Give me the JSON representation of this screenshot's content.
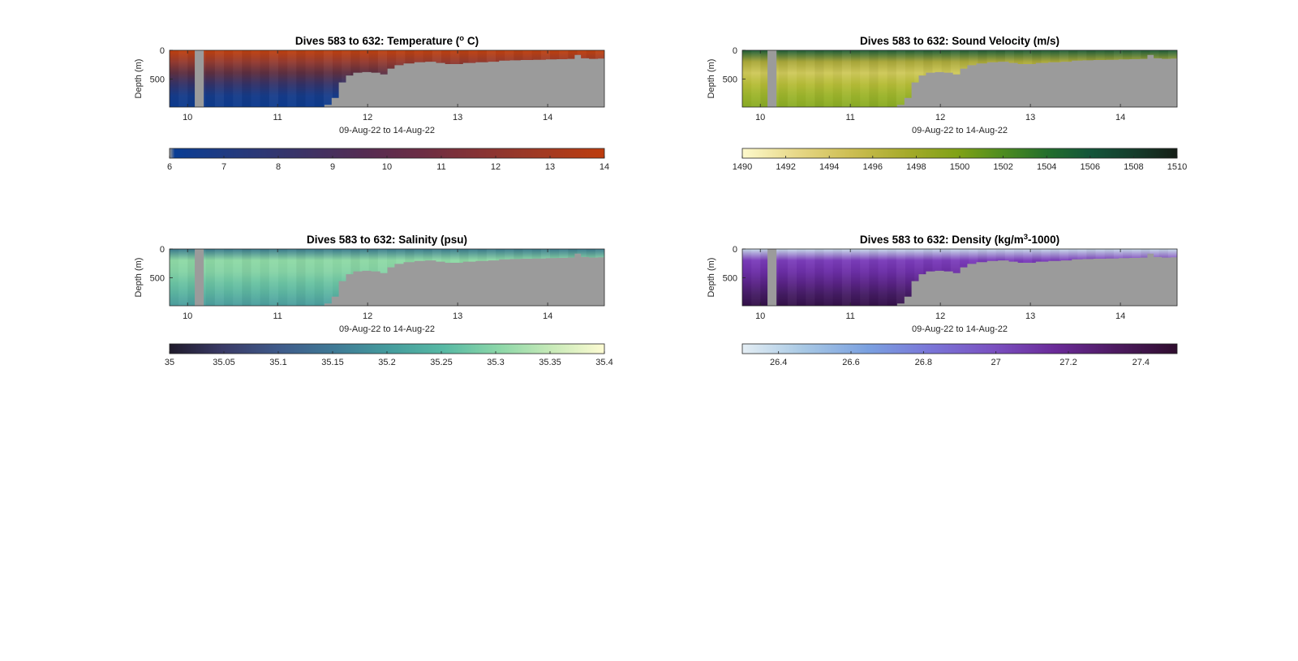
{
  "figure": {
    "common": {
      "xlabel": "09-Aug-22 to 14-Aug-22",
      "ylabel": "Depth (m)",
      "x_ticks": [
        10,
        11,
        12,
        13,
        14
      ],
      "y_ticks": [
        0,
        500
      ],
      "xlim": [
        9.8,
        14.63
      ],
      "ylim": [
        0,
        990
      ],
      "mask_color": "#9b9b9b",
      "bottom_depth": [
        {
          "x": 9.8,
          "depth": 990
        },
        {
          "x": 11.45,
          "depth": 990
        },
        {
          "x": 11.52,
          "depth": 950
        },
        {
          "x": 11.6,
          "depth": 830
        },
        {
          "x": 11.68,
          "depth": 560
        },
        {
          "x": 11.76,
          "depth": 440
        },
        {
          "x": 11.84,
          "depth": 390
        },
        {
          "x": 11.94,
          "depth": 380
        },
        {
          "x": 12.04,
          "depth": 390
        },
        {
          "x": 12.14,
          "depth": 420
        },
        {
          "x": 12.22,
          "depth": 320
        },
        {
          "x": 12.3,
          "depth": 260
        },
        {
          "x": 12.4,
          "depth": 230
        },
        {
          "x": 12.52,
          "depth": 210
        },
        {
          "x": 12.64,
          "depth": 200
        },
        {
          "x": 12.76,
          "depth": 220
        },
        {
          "x": 12.86,
          "depth": 240
        },
        {
          "x": 12.96,
          "depth": 240
        },
        {
          "x": 13.06,
          "depth": 220
        },
        {
          "x": 13.2,
          "depth": 210
        },
        {
          "x": 13.34,
          "depth": 200
        },
        {
          "x": 13.46,
          "depth": 180
        },
        {
          "x": 13.58,
          "depth": 175
        },
        {
          "x": 13.7,
          "depth": 170
        },
        {
          "x": 13.84,
          "depth": 165
        },
        {
          "x": 13.98,
          "depth": 160
        },
        {
          "x": 14.1,
          "depth": 155
        },
        {
          "x": 14.22,
          "depth": 150
        },
        {
          "x": 14.3,
          "depth": 80
        },
        {
          "x": 14.37,
          "depth": 140
        },
        {
          "x": 14.46,
          "depth": 150
        },
        {
          "x": 14.56,
          "depth": 145
        },
        {
          "x": 14.63,
          "depth": 145
        }
      ],
      "gap": [
        10.08,
        10.18
      ]
    }
  },
  "chart_data": [
    {
      "type": "heatmap",
      "title": "Dives 583 to 632: Temperature (",
      "title_super": "o",
      "title_after": " C)",
      "xlabel": "09-Aug-22 to 14-Aug-22",
      "ylabel": "Depth (m)",
      "x_ticks": [
        10,
        11,
        12,
        13,
        14
      ],
      "y_ticks": [
        0,
        500
      ],
      "xlim": [
        9.8,
        14.63
      ],
      "ylim": [
        0,
        990
      ],
      "depth_gradient": [
        "#c2410e",
        "#963c30",
        "#5e3042",
        "#33336a",
        "#163c8a",
        "#0d3c90"
      ],
      "colorbar": {
        "min": 6,
        "max": 14,
        "ticks": [
          6,
          7,
          8,
          9,
          10,
          11,
          12,
          13,
          14
        ],
        "tick_labels": [
          "6",
          "7",
          "8",
          "9",
          "10",
          "11",
          "12",
          "13",
          "14"
        ],
        "colors": [
          "#9b9b9b",
          "#0a3d94",
          "#233a7e",
          "#3a3367",
          "#552c52",
          "#6c2d44",
          "#883333",
          "#a23a22",
          "#bd3c0e"
        ],
        "stops": [
          0,
          0.012,
          0.15,
          0.3,
          0.45,
          0.58,
          0.72,
          0.86,
          1
        ]
      }
    },
    {
      "type": "heatmap",
      "title": "Dives 583 to 632: Sound Velocity (m/s)",
      "title_super": "",
      "title_after": "",
      "xlabel": "09-Aug-22 to 14-Aug-22",
      "ylabel": "Depth (m)",
      "x_ticks": [
        10,
        11,
        12,
        13,
        14
      ],
      "y_ticks": [
        0,
        500
      ],
      "xlim": [
        9.8,
        14.63
      ],
      "ylim": [
        0,
        990
      ],
      "depth_gradient": [
        "#1f5f3a",
        "#aaa83a",
        "#cfc95a",
        "#b6bd38",
        "#9db52c",
        "#8aad25"
      ],
      "colorbar": {
        "min": 1490,
        "max": 1510,
        "ticks": [
          1490,
          1492,
          1494,
          1496,
          1498,
          1500,
          1502,
          1504,
          1506,
          1508,
          1510
        ],
        "tick_labels": [
          "1490",
          "1492",
          "1494",
          "1496",
          "1498",
          "1500",
          "1502",
          "1504",
          "1506",
          "1508",
          "1510"
        ],
        "colors": [
          "#fdf9cc",
          "#e8d98a",
          "#cdbe52",
          "#a5aa2a",
          "#7ea116",
          "#4d8c1f",
          "#236f2c",
          "#13553a",
          "#153d2c",
          "#151e16"
        ],
        "stops": [
          0,
          0.12,
          0.25,
          0.38,
          0.5,
          0.6,
          0.7,
          0.8,
          0.9,
          1
        ]
      }
    },
    {
      "type": "heatmap",
      "title": "Dives 583 to 632: Salinity (psu)",
      "title_super": "",
      "title_after": "",
      "xlabel": "09-Aug-22 to 14-Aug-22",
      "ylabel": "Depth (m)",
      "x_ticks": [
        10,
        11,
        12,
        13,
        14
      ],
      "y_ticks": [
        0,
        500
      ],
      "xlim": [
        9.8,
        14.63
      ],
      "ylim": [
        0,
        990
      ],
      "depth_gradient": [
        "#3a7a8e",
        "#8fdaa6",
        "#86d4a6",
        "#6cc4a4",
        "#5ab3a2",
        "#4d9fa0"
      ],
      "colorbar": {
        "min": 35,
        "max": 35.4,
        "ticks": [
          35,
          35.05,
          35.1,
          35.15,
          35.2,
          35.25,
          35.3,
          35.35,
          35.4
        ],
        "tick_labels": [
          "35",
          "35.05",
          "35.1",
          "35.15",
          "35.2",
          "35.25",
          "35.3",
          "35.35",
          "35.4"
        ],
        "colors": [
          "#1f1a2b",
          "#3a3a66",
          "#3f5a8a",
          "#3f7a96",
          "#449b9d",
          "#57b9a4",
          "#8dd7a8",
          "#c8eab8",
          "#fdfbd2"
        ],
        "stops": [
          0,
          0.12,
          0.25,
          0.38,
          0.5,
          0.63,
          0.76,
          0.88,
          1
        ]
      }
    },
    {
      "type": "heatmap",
      "title": "Dives 583 to 632: Density (kg/m",
      "title_super": "3",
      "title_after": "-1000)",
      "xlabel": "09-Aug-22 to 14-Aug-22",
      "ylabel": "Depth (m)",
      "x_ticks": [
        10,
        11,
        12,
        13,
        14
      ],
      "y_ticks": [
        0,
        500
      ],
      "xlim": [
        9.8,
        14.63
      ],
      "ylim": [
        0,
        990
      ],
      "depth_gradient": [
        "#c8dcea",
        "#7c3ebb",
        "#6d2fa8",
        "#5a2487",
        "#451c64",
        "#35124a"
      ],
      "colorbar": {
        "min": 26.3,
        "max": 27.5,
        "ticks": [
          26.4,
          26.6,
          26.8,
          27,
          27.2,
          27.4
        ],
        "tick_labels": [
          "26.4",
          "26.6",
          "26.8",
          "27",
          "27.2",
          "27.4"
        ],
        "colors": [
          "#e4eef4",
          "#a8c8e4",
          "#7aa0e0",
          "#7a76d8",
          "#7a50c0",
          "#6a2a98",
          "#4d1a60",
          "#2f0d2e"
        ],
        "stops": [
          0,
          0.14,
          0.29,
          0.43,
          0.58,
          0.72,
          0.86,
          1
        ]
      }
    }
  ]
}
